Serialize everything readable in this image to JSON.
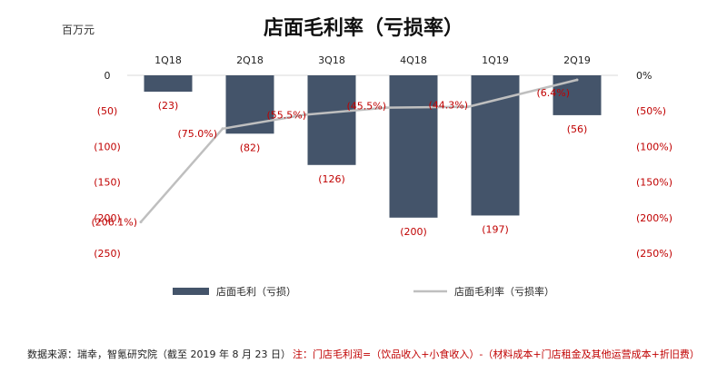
{
  "chart_data": {
    "type": "bar",
    "title": "店面毛利率（亏损率）",
    "unit_label": "百万元",
    "categories": [
      "1Q18",
      "2Q18",
      "3Q18",
      "4Q18",
      "1Q19",
      "2Q19"
    ],
    "series": [
      {
        "name": "店面毛利（亏损）",
        "type": "bar",
        "axis": "left",
        "values": [
          -23,
          -82,
          -126,
          -200,
          -197,
          -56
        ],
        "labels": [
          "(23)",
          "(82)",
          "(126)",
          "(200)",
          "(197)",
          "(56)"
        ],
        "color": "#44546a"
      },
      {
        "name": "店面毛利率（亏损率）",
        "type": "line",
        "axis": "right",
        "values": [
          -206.1,
          -75.0,
          -55.5,
          -45.5,
          -44.3,
          -6.4
        ],
        "labels": [
          "(206.1%)",
          "(75.0%)",
          "(55.5%)",
          "(45.5%)",
          "(44.3%)",
          "(6.4%)"
        ],
        "color": "#bfbfbf"
      }
    ],
    "y_left": {
      "range": [
        -250,
        0
      ],
      "ticks": [
        0,
        -50,
        -100,
        -150,
        -200,
        -250
      ],
      "tick_labels": [
        "0",
        "(50)",
        "(100)",
        "(150)",
        "(200)",
        "(250)"
      ],
      "colors": [
        "#222222",
        "#c00000",
        "#c00000",
        "#c00000",
        "#c00000",
        "#c00000"
      ]
    },
    "y_right": {
      "range": [
        -250,
        0
      ],
      "ticks": [
        0,
        -50,
        -100,
        -150,
        -200,
        -250
      ],
      "tick_labels": [
        "0%",
        "(50%)",
        "(100%)",
        "(150%)",
        "(200%)",
        "(250%)"
      ],
      "colors": [
        "#222222",
        "#c00000",
        "#c00000",
        "#c00000",
        "#c00000",
        "#c00000"
      ]
    },
    "grid": false,
    "legend": "bottom"
  },
  "footer": {
    "source": "数据来源：瑞幸，智氪研究院（截至 2019 年 8 月 23 日）",
    "note": "注：门店毛利润=（饮品收入+小食收入）-（材料成本+门店租金及其他运营成本+折旧费）",
    "source_color": "#222222",
    "note_color": "#c00000"
  }
}
